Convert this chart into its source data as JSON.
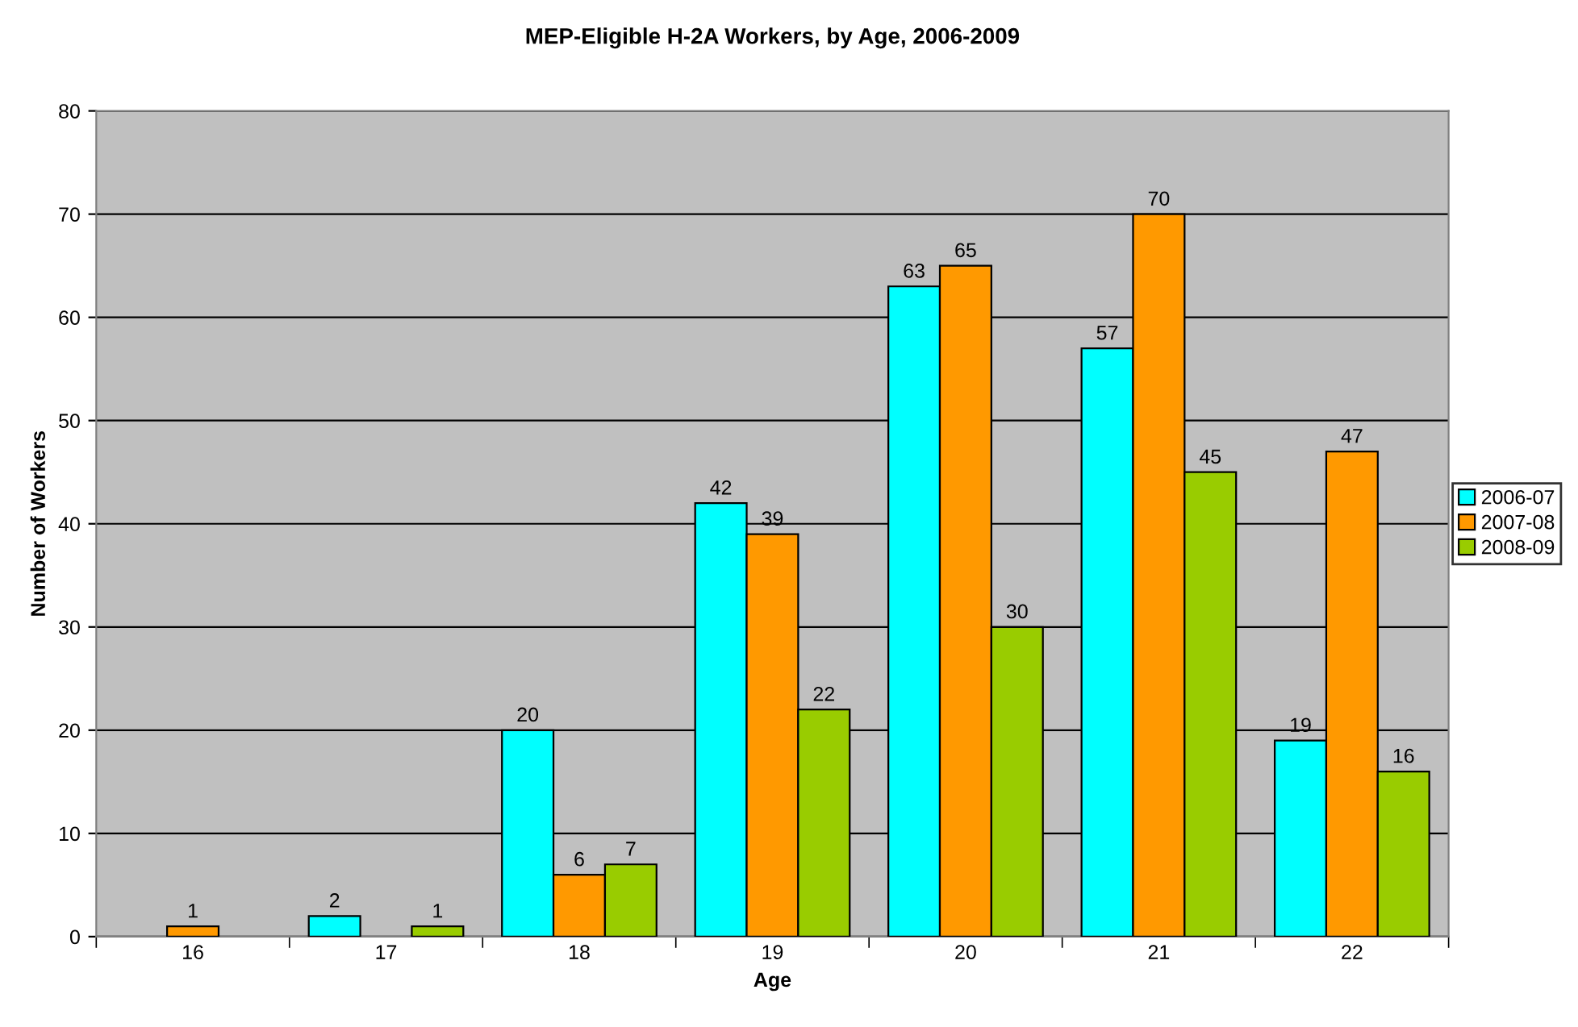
{
  "chart_data": {
    "type": "bar",
    "title": "MEP-Eligible H-2A Workers, by Age, 2006-2009",
    "xlabel": "Age",
    "ylabel": "Number of Workers",
    "categories": [
      "16",
      "17",
      "18",
      "19",
      "20",
      "21",
      "22"
    ],
    "series": [
      {
        "name": "2006-07",
        "color": "#00ffff",
        "values": [
          null,
          2,
          20,
          42,
          63,
          57,
          19
        ]
      },
      {
        "name": "2007-08",
        "color": "#ff9900",
        "values": [
          1,
          null,
          6,
          39,
          65,
          70,
          47
        ]
      },
      {
        "name": "2008-09",
        "color": "#99cc00",
        "values": [
          null,
          1,
          7,
          22,
          30,
          45,
          16
        ]
      }
    ],
    "ylim": [
      0,
      80
    ],
    "yticks": [
      0,
      10,
      20,
      30,
      40,
      50,
      60,
      70,
      80
    ],
    "grid": "y",
    "legend": "right",
    "data_labels": true
  }
}
